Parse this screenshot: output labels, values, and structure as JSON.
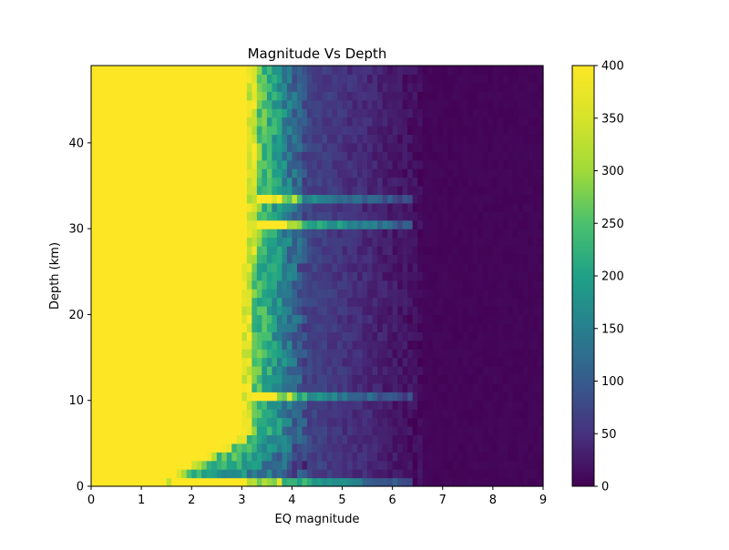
{
  "chart_data": {
    "type": "heatmap",
    "title": "Magnitude Vs Depth",
    "xlabel": "EQ magnitude",
    "ylabel": "Depth (km)",
    "xlim": [
      0,
      9
    ],
    "ylim": [
      0,
      49
    ],
    "xticks": [
      0,
      1,
      2,
      3,
      4,
      5,
      6,
      7,
      8,
      9
    ],
    "yticks": [
      0,
      10,
      20,
      30,
      40
    ],
    "bin_width_magnitude": 0.1,
    "bin_height_depth_km": 1,
    "colormap": "viridis",
    "colorbar": {
      "vmin": 0,
      "vmax": 400,
      "ticks": [
        0,
        50,
        100,
        150,
        200,
        250,
        300,
        350,
        400
      ]
    },
    "grid": false,
    "description_of_counts": "Counts per (magnitude, depth) bin; bins with magnitude < ~3.3 saturate at 400 (most depths), dense band ~3.3-4.3, decaying to near 0 beyond magnitude 6.5. Strong rows at depth 0, 10, 30, 33 km.",
    "profile": {
      "saturated_below_magnitude": 3.3,
      "band_end_magnitude": 4.3,
      "tail_end_magnitude": 6.6,
      "highlight_depths_km": [
        0,
        10,
        30,
        33
      ]
    }
  }
}
